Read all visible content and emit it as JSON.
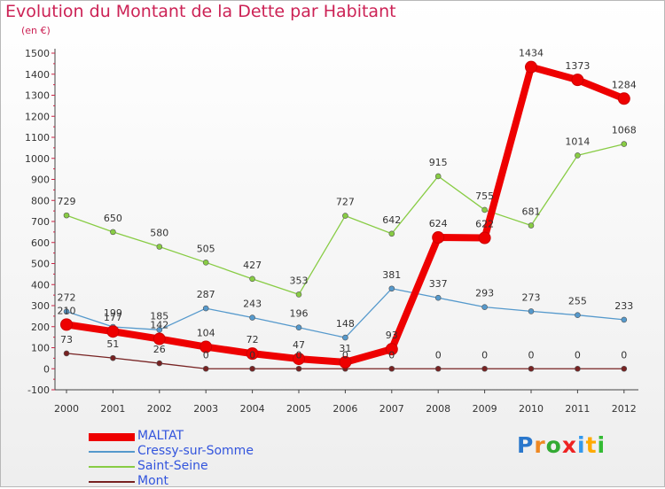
{
  "title": "Evolution du Montant de la Dette par Habitant",
  "subtitle": "(en €)",
  "logo": {
    "text": "Proxiti",
    "colors": [
      "#2a77cc",
      "#ee8822",
      "#33aa33",
      "#ee2222",
      "#3399ee",
      "#ffaa00",
      "#33bb33"
    ]
  },
  "chart_data": {
    "type": "line",
    "x": [
      "2000",
      "2001",
      "2002",
      "2003",
      "2004",
      "2005",
      "2006",
      "2007",
      "2008",
      "2009",
      "2010",
      "2011",
      "2012"
    ],
    "yticks": [
      "-100",
      "0",
      "100",
      "200",
      "300",
      "400",
      "500",
      "600",
      "700",
      "800",
      "900",
      "1000",
      "1100",
      "1200",
      "1300",
      "1400",
      "1500"
    ],
    "ylim": [
      -100,
      1500
    ],
    "grid": false,
    "legend_position": "bottom-left",
    "series": [
      {
        "name": "MALTAT",
        "color": "#ee0000",
        "values": [
          210,
          177,
          142,
          104,
          72,
          47,
          31,
          93,
          624,
          622,
          1434,
          1373,
          1284
        ],
        "labels": [
          "210",
          "177",
          "142",
          "104",
          "72",
          "47",
          "31",
          "93",
          "624",
          "622",
          "1434",
          "1373",
          "1284"
        ]
      },
      {
        "name": "Cressy-sur-Somme",
        "color": "#5599cc",
        "values": [
          272,
          199,
          185,
          287,
          243,
          196,
          148,
          381,
          337,
          293,
          273,
          255,
          233
        ],
        "labels": [
          "272",
          "199",
          "185",
          "287",
          "243",
          "196",
          "148",
          "381",
          "337",
          "293",
          "273",
          "255",
          "233"
        ]
      },
      {
        "name": "Saint-Seine",
        "color": "#88cc44",
        "values": [
          729,
          650,
          580,
          505,
          427,
          353,
          727,
          642,
          915,
          755,
          681,
          1014,
          1068
        ],
        "labels": [
          "729",
          "650",
          "580",
          "505",
          "427",
          "353",
          "727",
          "642",
          "915",
          "755",
          "681",
          "1014",
          "1068"
        ]
      },
      {
        "name": "Mont",
        "color": "#772222",
        "values": [
          73,
          51,
          26,
          0,
          0,
          0,
          0,
          0,
          0,
          0,
          0,
          0,
          0
        ],
        "labels": [
          "73",
          "51",
          "26",
          "0",
          "0",
          "0",
          "0",
          "0",
          "0",
          "0",
          "0",
          "0",
          "0"
        ]
      }
    ]
  }
}
